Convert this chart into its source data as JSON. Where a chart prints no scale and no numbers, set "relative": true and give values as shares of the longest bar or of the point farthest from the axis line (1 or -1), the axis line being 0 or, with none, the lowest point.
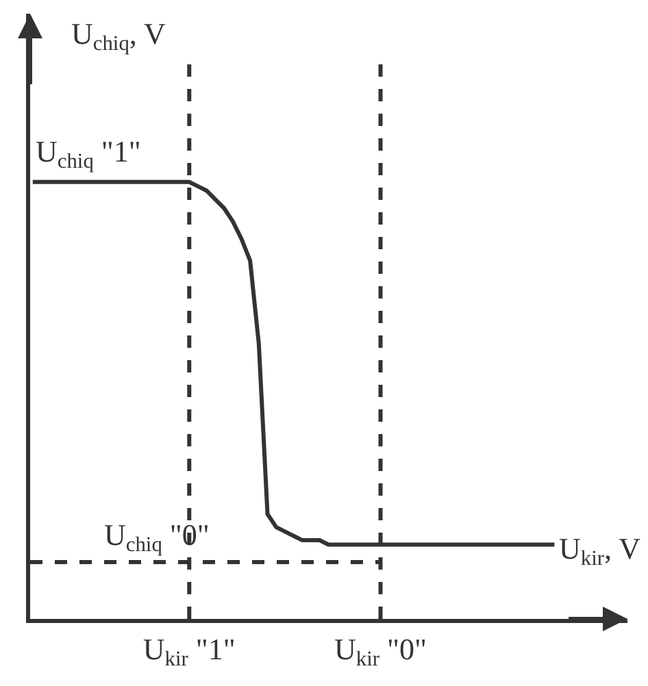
{
  "chart_data": {
    "type": "line",
    "relative": true,
    "xlabel": "U$_{kir}$, V",
    "ylabel": "U$_{chiq}$, V",
    "categories": [
      null,
      null,
      null,
      null,
      null,
      null,
      null,
      null,
      null,
      null,
      null,
      null,
      null,
      null,
      null,
      null,
      null,
      null,
      "U$_{kir}$ \"1\"",
      null,
      null,
      null,
      null,
      null,
      null,
      null,
      null,
      null,
      null,
      null,
      null,
      null,
      null,
      null,
      null,
      null,
      null,
      null,
      null,
      null,
      "U$_{kir}$ \"0\"",
      null,
      null,
      null,
      null,
      null,
      null,
      null,
      null,
      null,
      null,
      null,
      null,
      null,
      null,
      null,
      null,
      null,
      null,
      null,
      null
    ],
    "values": [
      1,
      1,
      1,
      1,
      1,
      1,
      1,
      1,
      1,
      1,
      1,
      1,
      1,
      1,
      1,
      1,
      1,
      1,
      1,
      0.99,
      0.98,
      0.96,
      0.94,
      0.91,
      0.87,
      0.82,
      0.63,
      0.24,
      0.21,
      0.2,
      0.19,
      0.18,
      0.18,
      0.18,
      0.17,
      0.17,
      0.17,
      0.17,
      0.17,
      0.17,
      0.17,
      0.17,
      0.17,
      0.17,
      0.17,
      0.17,
      0.17,
      0.17,
      0.17,
      0.17,
      0.17,
      0.17,
      0.17,
      0.17,
      0.17,
      0.17,
      0.17,
      0.17,
      0.17,
      0.17,
      0.17
    ],
    "color": "#333333",
    "ref_lines": [
      {
        "axis": "x",
        "value": "U$_{kir}$ \"1\"",
        "color": "#333333",
        "line_style": "dashed"
      },
      {
        "axis": "x",
        "value": "U$_{kir}$ \"0\"",
        "color": "#333333",
        "line_style": "dashed"
      },
      {
        "axis": "y",
        "value": 0.13,
        "label": "U$_{chiq}$ \"0\"",
        "color": "#333333",
        "line_style": "dashed"
      }
    ],
    "annotations": [
      {
        "text": "U$_{chiq}$ \"1\"",
        "y": 1
      }
    ]
  }
}
